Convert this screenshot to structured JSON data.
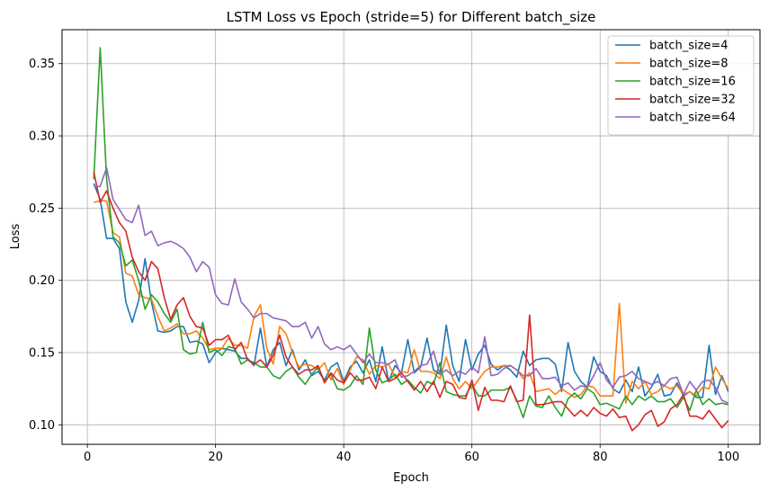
{
  "chart_data": {
    "type": "line",
    "title": "LSTM Loss vs Epoch (stride=5) for Different batch_size",
    "xlabel": "Epoch",
    "ylabel": "Loss",
    "xlim": [
      -3.95,
      104.95
    ],
    "ylim": [
      0.0865,
      0.3735
    ],
    "xticks": [
      0,
      20,
      40,
      60,
      80,
      100
    ],
    "yticks": [
      0.1,
      0.15,
      0.2,
      0.25,
      0.3,
      0.35
    ],
    "xtick_labels": [
      "0",
      "20",
      "40",
      "60",
      "80",
      "100"
    ],
    "ytick_labels": [
      "0.10",
      "0.15",
      "0.20",
      "0.25",
      "0.30",
      "0.35"
    ],
    "grid": true,
    "legend_position": "top-right",
    "x": [
      1,
      2,
      3,
      4,
      5,
      6,
      7,
      8,
      9,
      10,
      11,
      12,
      13,
      14,
      15,
      16,
      17,
      18,
      19,
      20,
      21,
      22,
      23,
      24,
      25,
      26,
      27,
      28,
      29,
      30,
      31,
      32,
      33,
      34,
      35,
      36,
      37,
      38,
      39,
      40,
      41,
      42,
      43,
      44,
      45,
      46,
      47,
      48,
      49,
      50,
      51,
      52,
      53,
      54,
      55,
      56,
      57,
      58,
      59,
      60,
      61,
      62,
      63,
      64,
      65,
      66,
      67,
      68,
      69,
      70,
      71,
      72,
      73,
      74,
      75,
      76,
      77,
      78,
      79,
      80,
      81,
      82,
      83,
      84,
      85,
      86,
      87,
      88,
      89,
      90,
      91,
      92,
      93,
      94,
      95,
      96,
      97,
      98,
      99,
      100
    ],
    "series": [
      {
        "name": "batch_size=4",
        "color": "#1f77b4",
        "values": [
          0.267,
          0.256,
          0.229,
          0.229,
          0.222,
          0.185,
          0.171,
          0.186,
          0.215,
          0.185,
          0.165,
          0.164,
          0.165,
          0.168,
          0.168,
          0.157,
          0.158,
          0.156,
          0.143,
          0.15,
          0.153,
          0.152,
          0.151,
          0.146,
          0.146,
          0.141,
          0.167,
          0.14,
          0.152,
          0.157,
          0.141,
          0.152,
          0.138,
          0.145,
          0.134,
          0.137,
          0.131,
          0.14,
          0.143,
          0.13,
          0.14,
          0.144,
          0.136,
          0.145,
          0.13,
          0.154,
          0.13,
          0.141,
          0.136,
          0.159,
          0.136,
          0.14,
          0.16,
          0.138,
          0.135,
          0.169,
          0.141,
          0.13,
          0.159,
          0.138,
          0.149,
          0.155,
          0.142,
          0.138,
          0.141,
          0.138,
          0.133,
          0.151,
          0.141,
          0.145,
          0.146,
          0.146,
          0.142,
          0.123,
          0.157,
          0.137,
          0.13,
          0.126,
          0.147,
          0.137,
          0.134,
          0.125,
          0.122,
          0.131,
          0.123,
          0.14,
          0.12,
          0.126,
          0.135,
          0.12,
          0.121,
          0.129,
          0.12,
          0.123,
          0.119,
          0.119,
          0.155,
          0.121,
          0.134,
          0.123
        ]
      },
      {
        "name": "batch_size=8",
        "color": "#ff7f0e",
        "values": [
          0.254,
          0.255,
          0.255,
          0.233,
          0.23,
          0.205,
          0.203,
          0.19,
          0.188,
          0.187,
          0.175,
          0.165,
          0.167,
          0.17,
          0.163,
          0.163,
          0.165,
          0.16,
          0.152,
          0.153,
          0.153,
          0.16,
          0.155,
          0.155,
          0.153,
          0.175,
          0.183,
          0.153,
          0.142,
          0.168,
          0.163,
          0.15,
          0.14,
          0.142,
          0.141,
          0.138,
          0.143,
          0.131,
          0.139,
          0.128,
          0.138,
          0.147,
          0.145,
          0.135,
          0.141,
          0.14,
          0.142,
          0.133,
          0.137,
          0.136,
          0.152,
          0.137,
          0.137,
          0.136,
          0.132,
          0.147,
          0.132,
          0.125,
          0.13,
          0.125,
          0.131,
          0.137,
          0.14,
          0.14,
          0.141,
          0.141,
          0.138,
          0.132,
          0.136,
          0.123,
          0.124,
          0.125,
          0.121,
          0.125,
          0.122,
          0.119,
          0.121,
          0.127,
          0.126,
          0.12,
          0.12,
          0.12,
          0.184,
          0.115,
          0.13,
          0.125,
          0.13,
          0.121,
          0.123,
          0.127,
          0.125,
          0.127,
          0.121,
          0.123,
          0.12,
          0.126,
          0.125,
          0.14,
          0.132,
          0.125
        ]
      },
      {
        "name": "batch_size=16",
        "color": "#2ca02c",
        "values": [
          0.27,
          0.361,
          0.27,
          0.23,
          0.226,
          0.21,
          0.214,
          0.2,
          0.18,
          0.19,
          0.185,
          0.177,
          0.171,
          0.18,
          0.152,
          0.149,
          0.15,
          0.171,
          0.15,
          0.152,
          0.148,
          0.154,
          0.153,
          0.142,
          0.145,
          0.143,
          0.14,
          0.14,
          0.134,
          0.132,
          0.137,
          0.14,
          0.133,
          0.128,
          0.135,
          0.14,
          0.13,
          0.135,
          0.125,
          0.124,
          0.127,
          0.134,
          0.128,
          0.167,
          0.138,
          0.129,
          0.131,
          0.135,
          0.128,
          0.131,
          0.126,
          0.122,
          0.13,
          0.128,
          0.143,
          0.123,
          0.121,
          0.12,
          0.12,
          0.128,
          0.12,
          0.12,
          0.124,
          0.124,
          0.124,
          0.126,
          0.117,
          0.105,
          0.12,
          0.113,
          0.112,
          0.12,
          0.112,
          0.106,
          0.118,
          0.122,
          0.118,
          0.125,
          0.122,
          0.114,
          0.115,
          0.113,
          0.111,
          0.12,
          0.114,
          0.12,
          0.117,
          0.12,
          0.116,
          0.116,
          0.118,
          0.112,
          0.119,
          0.11,
          0.124,
          0.114,
          0.118,
          0.114,
          0.115,
          0.114
        ]
      },
      {
        "name": "batch_size=32",
        "color": "#d62728",
        "values": [
          0.275,
          0.254,
          0.262,
          0.25,
          0.24,
          0.234,
          0.216,
          0.206,
          0.2,
          0.213,
          0.208,
          0.188,
          0.173,
          0.183,
          0.188,
          0.175,
          0.168,
          0.167,
          0.155,
          0.159,
          0.159,
          0.162,
          0.152,
          0.157,
          0.145,
          0.142,
          0.145,
          0.14,
          0.148,
          0.162,
          0.147,
          0.14,
          0.135,
          0.138,
          0.138,
          0.141,
          0.129,
          0.136,
          0.131,
          0.129,
          0.136,
          0.131,
          0.131,
          0.133,
          0.125,
          0.14,
          0.13,
          0.132,
          0.136,
          0.13,
          0.124,
          0.13,
          0.123,
          0.13,
          0.119,
          0.13,
          0.128,
          0.119,
          0.118,
          0.131,
          0.11,
          0.126,
          0.117,
          0.117,
          0.116,
          0.127,
          0.116,
          0.117,
          0.176,
          0.114,
          0.114,
          0.115,
          0.116,
          0.116,
          0.111,
          0.106,
          0.11,
          0.106,
          0.112,
          0.108,
          0.106,
          0.111,
          0.105,
          0.106,
          0.096,
          0.1,
          0.107,
          0.11,
          0.099,
          0.102,
          0.111,
          0.114,
          0.121,
          0.106,
          0.106,
          0.104,
          0.11,
          0.104,
          0.098,
          0.103
        ]
      },
      {
        "name": "batch_size=64",
        "color": "#9467bd",
        "values": [
          0.265,
          0.265,
          0.278,
          0.256,
          0.249,
          0.242,
          0.24,
          0.252,
          0.231,
          0.234,
          0.224,
          0.226,
          0.227,
          0.225,
          0.222,
          0.216,
          0.206,
          0.213,
          0.209,
          0.19,
          0.184,
          0.183,
          0.201,
          0.185,
          0.18,
          0.174,
          0.177,
          0.177,
          0.174,
          0.173,
          0.172,
          0.168,
          0.168,
          0.171,
          0.16,
          0.168,
          0.156,
          0.152,
          0.154,
          0.152,
          0.155,
          0.149,
          0.143,
          0.149,
          0.143,
          0.143,
          0.142,
          0.145,
          0.133,
          0.134,
          0.137,
          0.141,
          0.142,
          0.151,
          0.135,
          0.138,
          0.134,
          0.137,
          0.135,
          0.14,
          0.136,
          0.161,
          0.134,
          0.135,
          0.139,
          0.141,
          0.138,
          0.134,
          0.134,
          0.139,
          0.132,
          0.132,
          0.133,
          0.127,
          0.129,
          0.124,
          0.127,
          0.126,
          0.134,
          0.143,
          0.131,
          0.126,
          0.133,
          0.134,
          0.137,
          0.132,
          0.13,
          0.128,
          0.13,
          0.127,
          0.132,
          0.133,
          0.121,
          0.13,
          0.124,
          0.13,
          0.131,
          0.126,
          0.117,
          0.115
        ]
      }
    ]
  }
}
